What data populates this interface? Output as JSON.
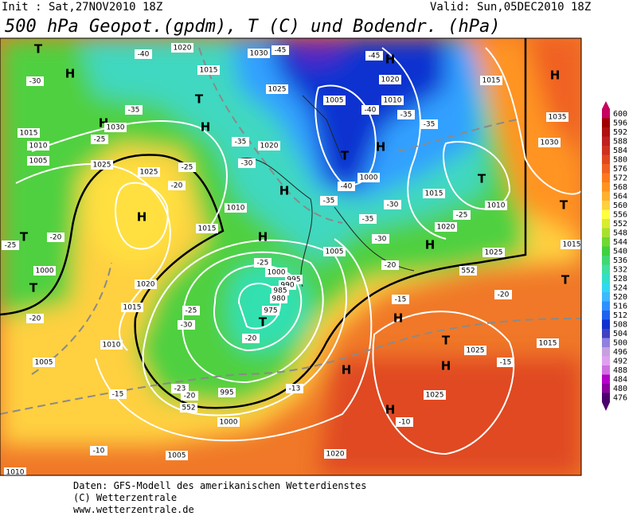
{
  "header": {
    "init": "Init : Sat,27NOV2010 18Z",
    "valid": "Valid: Sun,05DEC2010 18Z",
    "title": "500 hPa Geopot.(gpdm), T (C) und Bodendr. (hPa)"
  },
  "footer": {
    "lines": [
      "Daten: GFS-Modell des amerikanischen Wetterdienstes",
      "(C) Wetterzentrale",
      "www.wetterzentrale.de"
    ]
  },
  "colorbar": {
    "ticks": [
      600,
      596,
      592,
      588,
      584,
      580,
      576,
      572,
      568,
      564,
      560,
      556,
      552,
      548,
      544,
      540,
      536,
      532,
      528,
      524,
      520,
      516,
      512,
      508,
      504,
      500,
      496,
      492,
      488,
      484,
      480,
      476
    ],
    "colors": [
      "#c80060",
      "#a00000",
      "#b01010",
      "#c02020",
      "#d03020",
      "#e04820",
      "#f06020",
      "#ff7820",
      "#ff9420",
      "#ffb030",
      "#ffd040",
      "#ffff40",
      "#d8ec30",
      "#a8e030",
      "#70d830",
      "#40d040",
      "#40d870",
      "#40e0a0",
      "#30e0c8",
      "#30d8f0",
      "#40b8ff",
      "#3090ff",
      "#2060f0",
      "#1030d0",
      "#4040c0",
      "#9080e0",
      "#c8a0e0",
      "#e0a0f0",
      "#d070e0",
      "#b400c8",
      "#8b00a0",
      "#4b006e"
    ]
  },
  "map": {
    "labels": [
      "H",
      "T",
      "H",
      "T",
      "T",
      "T",
      "H",
      "H",
      "T",
      "H",
      "T",
      "H",
      "H",
      "T",
      "H",
      "T",
      "T",
      "H",
      "H",
      "H",
      "T",
      "H",
      "H",
      "H",
      "1015",
      "1010",
      "1005",
      "1000",
      "1005",
      "1010",
      "1015",
      "1020",
      "1025",
      "1025",
      "1015",
      "1010",
      "1020",
      "1025",
      "1020",
      "1015",
      "1030",
      "1000",
      "995",
      "990",
      "985",
      "980",
      "975",
      "995",
      "1000",
      "1005",
      "1005",
      "1005",
      "1010",
      "1020",
      "1000",
      "1015",
      "1020",
      "1025",
      "1010",
      "1015",
      "1035",
      "1030",
      "1015",
      "1025",
      "1015",
      "1025",
      "1020",
      "1010",
      "1030",
      "-40",
      "-45",
      "-45",
      "-35",
      "-30",
      "-25",
      "-20",
      "-25",
      "-30",
      "-35",
      "-35",
      "-40",
      "-40",
      "-35",
      "-35",
      "-30",
      "-35",
      "-30",
      "-25",
      "-20",
      "-25",
      "-20",
      "-15",
      "-15",
      "-10",
      "-13",
      "-23",
      "-20",
      "-25",
      "-30",
      "-20",
      "-15",
      "-10",
      "-20",
      "-25",
      "-20",
      "552",
      "552"
    ]
  }
}
